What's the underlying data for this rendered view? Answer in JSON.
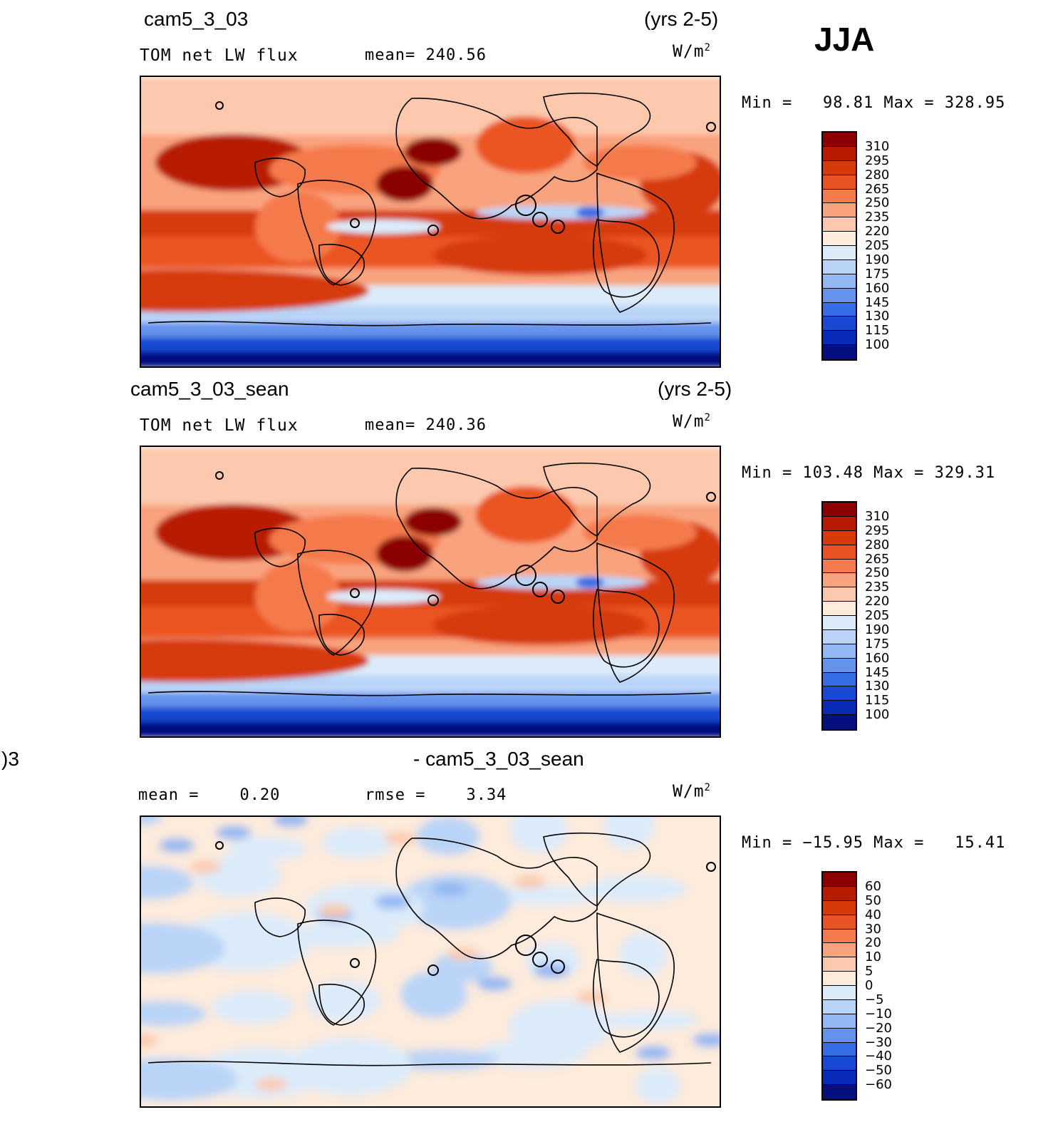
{
  "season": "JJA",
  "panels": [
    {
      "case_name": "cam5_3_03",
      "years": "(yrs 2-5)",
      "variable": "TOM net LW flux",
      "stat_left": "mean= 240.56",
      "stat_right": "",
      "units_base": "W/m",
      "units_exp": "2",
      "minmax": "Min =   98.81 Max = 328.95",
      "colorbar_labels": [
        "310",
        "295",
        "280",
        "265",
        "250",
        "235",
        "220",
        "205",
        "190",
        "175",
        "160",
        "145",
        "130",
        "115",
        "100"
      ],
      "colorbar_colors": [
        "#8b0000",
        "#b81c00",
        "#d63a0a",
        "#ea5424",
        "#f57a4c",
        "#f9a37e",
        "#fcc9ae",
        "#fdebdc",
        "#dcebfa",
        "#b9d4f7",
        "#93b7f2",
        "#6592ec",
        "#356de4",
        "#1848d4",
        "#0a2ab8",
        "#050f80"
      ],
      "map_kind": "abs"
    },
    {
      "case_name": "cam5_3_03_sean",
      "years": "(yrs 2-5)",
      "variable": "TOM net LW flux",
      "stat_left": "mean= 240.36",
      "stat_right": "",
      "units_base": "W/m",
      "units_exp": "2",
      "minmax": "Min = 103.48 Max = 329.31",
      "colorbar_labels": [
        "310",
        "295",
        "280",
        "265",
        "250",
        "235",
        "220",
        "205",
        "190",
        "175",
        "160",
        "145",
        "130",
        "115",
        "100"
      ],
      "colorbar_colors": [
        "#8b0000",
        "#b81c00",
        "#d63a0a",
        "#ea5424",
        "#f57a4c",
        "#f9a37e",
        "#fcc9ae",
        "#fdebdc",
        "#dcebfa",
        "#b9d4f7",
        "#93b7f2",
        "#6592ec",
        "#356de4",
        "#1848d4",
        "#0a2ab8",
        "#050f80"
      ],
      "map_kind": "abs"
    },
    {
      "case_name_left": ")3",
      "case_name": "- cam5_3_03_sean",
      "years": "",
      "variable": "",
      "stat_left": "mean =    0.20",
      "stat_right": "rmse =    3.34",
      "units_base": "W/m",
      "units_exp": "2",
      "minmax": "Min = −15.95 Max =   15.41",
      "colorbar_labels": [
        "60",
        "50",
        "40",
        "30",
        "20",
        "10",
        "5",
        "0",
        "−5",
        "−10",
        "−20",
        "−30",
        "−40",
        "−50",
        "−60"
      ],
      "colorbar_colors": [
        "#8b0000",
        "#b81c00",
        "#d63a0a",
        "#ea5424",
        "#f57a4c",
        "#f9a37e",
        "#fcc9ae",
        "#fdebdc",
        "#dcebfa",
        "#b9d4f7",
        "#93b7f2",
        "#6592ec",
        "#356de4",
        "#1848d4",
        "#0a2ab8",
        "#050f80"
      ],
      "map_kind": "diff"
    }
  ],
  "chart_data": [
    {
      "type": "heatmap",
      "title": "cam5_3_03",
      "subtitle": "TOM net LW flux",
      "units": "W/m2",
      "period": "(yrs 2-5)",
      "mean": 240.56,
      "min": 98.81,
      "max": 328.95,
      "colorbar_levels": [
        100,
        115,
        130,
        145,
        160,
        175,
        190,
        205,
        220,
        235,
        250,
        265,
        280,
        295,
        310
      ]
    },
    {
      "type": "heatmap",
      "title": "cam5_3_03_sean",
      "subtitle": "TOM net LW flux",
      "units": "W/m2",
      "period": "(yrs 2-5)",
      "mean": 240.36,
      "min": 103.48,
      "max": 329.31,
      "colorbar_levels": [
        100,
        115,
        130,
        145,
        160,
        175,
        190,
        205,
        220,
        235,
        250,
        265,
        280,
        295,
        310
      ]
    },
    {
      "type": "heatmap",
      "title": "- cam5_3_03_sean",
      "units": "W/m2",
      "mean": 0.2,
      "rmse": 3.34,
      "min": -15.95,
      "max": 15.41,
      "colorbar_levels": [
        -60,
        -50,
        -40,
        -30,
        -20,
        -10,
        -5,
        0,
        5,
        10,
        20,
        30,
        40,
        50,
        60
      ]
    }
  ]
}
